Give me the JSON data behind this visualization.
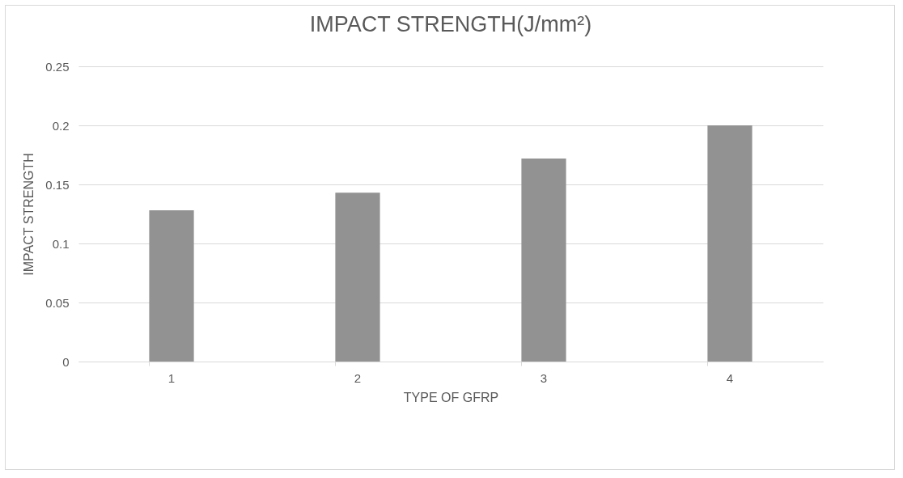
{
  "chart_data": {
    "type": "bar",
    "title": "IMPACT STRENGTH(J/mm²)",
    "xlabel": "TYPE OF GFRP",
    "ylabel": "IMPACT STRENGTH",
    "categories": [
      "1",
      "2",
      "3",
      "4"
    ],
    "values": [
      0.128,
      0.143,
      0.172,
      0.2
    ],
    "color": "#929292",
    "ylim": [
      0,
      0.25
    ],
    "yticks": [
      0,
      0.05,
      0.1,
      0.15,
      0.2,
      0.25
    ],
    "grid": true
  }
}
